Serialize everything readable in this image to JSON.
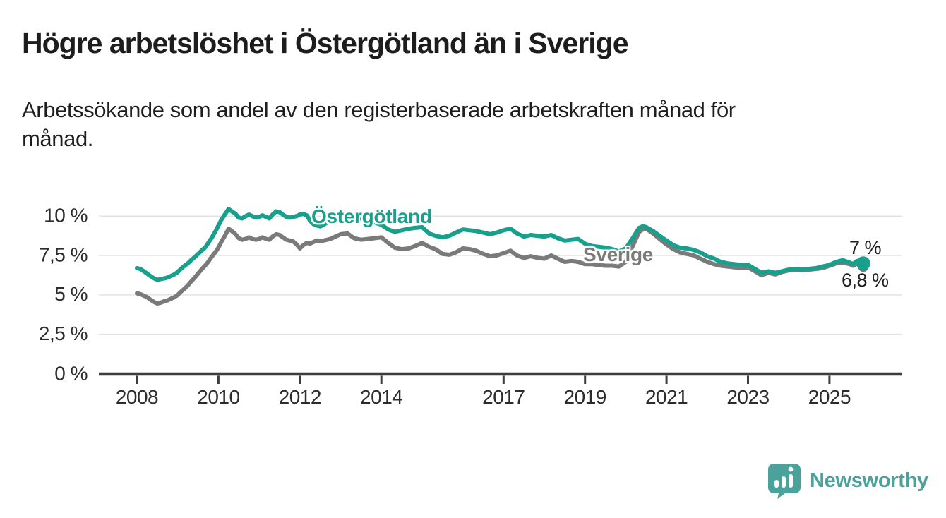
{
  "title": "Högre arbetslöshet i Östergötland än i Sverige",
  "subtitle": "Arbetssökande som andel av den registerbaserade arbetskraften månad för\nmånad.",
  "branding": {
    "logo_text": "Newsworthy",
    "logo_color": "#4ba29b"
  },
  "colors": {
    "ostergotland_line": "#18a08d",
    "sverige_line": "#7a7a7a",
    "gridline": "#e2e2e2",
    "axis": "#3d3d3d",
    "text": "#1d1d1d",
    "axis_text": "#2c2c2c"
  },
  "chart_data": {
    "type": "line",
    "title": "Högre arbetslöshet i Östergötland än i Sverige",
    "subtitle": "Arbetssökande som andel av den registerbaserade arbetskraften månad för månad.",
    "xlabel": "",
    "ylabel": "",
    "grid": "horizontal",
    "legend_position": "inline-labels",
    "x_axis": {
      "range": [
        2008,
        2025.9
      ],
      "ticks": [
        2008,
        2010,
        2012,
        2014,
        2017,
        2019,
        2021,
        2023,
        2025
      ],
      "tick_labels": [
        "2008",
        "2010",
        "2012",
        "2014",
        "2017",
        "2019",
        "2021",
        "2023",
        "2025"
      ]
    },
    "y_axis": {
      "range": [
        0,
        11
      ],
      "ticks": [
        0,
        2.5,
        5,
        7.5,
        10
      ],
      "tick_labels": [
        "0 %",
        "2,5 %",
        "5 %",
        "7,5 %",
        "10 %"
      ]
    },
    "series": [
      {
        "name": "Östergötland",
        "color": "#18a08d",
        "end_label": "7 %",
        "end_value": 7.0,
        "points": [
          [
            2008.0,
            6.7
          ],
          [
            2008.08,
            6.65
          ],
          [
            2008.17,
            6.5
          ],
          [
            2008.25,
            6.35
          ],
          [
            2008.33,
            6.2
          ],
          [
            2008.42,
            6.05
          ],
          [
            2008.5,
            5.95
          ],
          [
            2008.58,
            6.0
          ],
          [
            2008.67,
            6.05
          ],
          [
            2008.75,
            6.1
          ],
          [
            2008.83,
            6.2
          ],
          [
            2008.92,
            6.3
          ],
          [
            2009.0,
            6.45
          ],
          [
            2009.08,
            6.65
          ],
          [
            2009.17,
            6.85
          ],
          [
            2009.25,
            7.0
          ],
          [
            2009.33,
            7.2
          ],
          [
            2009.42,
            7.4
          ],
          [
            2009.5,
            7.6
          ],
          [
            2009.58,
            7.8
          ],
          [
            2009.67,
            8.0
          ],
          [
            2009.75,
            8.3
          ],
          [
            2009.83,
            8.6
          ],
          [
            2009.92,
            9.0
          ],
          [
            2010.0,
            9.4
          ],
          [
            2010.08,
            9.8
          ],
          [
            2010.17,
            10.15
          ],
          [
            2010.25,
            10.45
          ],
          [
            2010.33,
            10.3
          ],
          [
            2010.42,
            10.15
          ],
          [
            2010.5,
            9.9
          ],
          [
            2010.58,
            9.85
          ],
          [
            2010.67,
            10.0
          ],
          [
            2010.75,
            10.1
          ],
          [
            2010.83,
            10.0
          ],
          [
            2010.92,
            9.9
          ],
          [
            2011.0,
            9.95
          ],
          [
            2011.08,
            10.05
          ],
          [
            2011.17,
            9.95
          ],
          [
            2011.25,
            9.85
          ],
          [
            2011.33,
            10.1
          ],
          [
            2011.42,
            10.3
          ],
          [
            2011.5,
            10.25
          ],
          [
            2011.58,
            10.1
          ],
          [
            2011.67,
            9.95
          ],
          [
            2011.75,
            9.9
          ],
          [
            2011.83,
            9.95
          ],
          [
            2011.92,
            10.0
          ],
          [
            2012.0,
            10.1
          ],
          [
            2012.08,
            10.15
          ],
          [
            2012.17,
            10.05
          ],
          [
            2012.25,
            9.7
          ],
          [
            2012.33,
            9.5
          ],
          [
            2012.42,
            9.4
          ],
          [
            2012.5,
            9.35
          ],
          [
            2012.58,
            9.45
          ],
          [
            2012.67,
            9.6
          ],
          [
            2012.75,
            9.75
          ],
          [
            2012.83,
            9.9
          ],
          [
            2012.92,
            9.95
          ],
          [
            2013.0,
            10.0
          ],
          [
            2013.17,
            10.1
          ],
          [
            2013.33,
            10.0
          ],
          [
            2013.5,
            9.85
          ],
          [
            2013.67,
            9.7
          ],
          [
            2013.83,
            9.6
          ],
          [
            2014.0,
            9.45
          ],
          [
            2014.17,
            9.15
          ],
          [
            2014.33,
            9.0
          ],
          [
            2014.5,
            9.1
          ],
          [
            2014.67,
            9.2
          ],
          [
            2014.83,
            9.25
          ],
          [
            2015.0,
            9.3
          ],
          [
            2015.17,
            8.9
          ],
          [
            2015.33,
            8.75
          ],
          [
            2015.5,
            8.65
          ],
          [
            2015.67,
            8.75
          ],
          [
            2015.83,
            8.95
          ],
          [
            2016.0,
            9.15
          ],
          [
            2016.17,
            9.1
          ],
          [
            2016.33,
            9.05
          ],
          [
            2016.5,
            8.95
          ],
          [
            2016.67,
            8.85
          ],
          [
            2016.83,
            8.95
          ],
          [
            2017.0,
            9.1
          ],
          [
            2017.17,
            9.2
          ],
          [
            2017.33,
            8.9
          ],
          [
            2017.5,
            8.7
          ],
          [
            2017.67,
            8.8
          ],
          [
            2017.83,
            8.75
          ],
          [
            2018.0,
            8.7
          ],
          [
            2018.17,
            8.8
          ],
          [
            2018.33,
            8.6
          ],
          [
            2018.5,
            8.45
          ],
          [
            2018.67,
            8.5
          ],
          [
            2018.83,
            8.55
          ],
          [
            2019.0,
            8.25
          ],
          [
            2019.17,
            8.1
          ],
          [
            2019.33,
            8.05
          ],
          [
            2019.5,
            8.0
          ],
          [
            2019.67,
            7.9
          ],
          [
            2019.83,
            7.75
          ],
          [
            2020.0,
            7.95
          ],
          [
            2020.17,
            8.6
          ],
          [
            2020.33,
            9.25
          ],
          [
            2020.42,
            9.35
          ],
          [
            2020.5,
            9.3
          ],
          [
            2020.67,
            9.05
          ],
          [
            2020.83,
            8.75
          ],
          [
            2021.0,
            8.45
          ],
          [
            2021.17,
            8.15
          ],
          [
            2021.33,
            8.0
          ],
          [
            2021.5,
            7.95
          ],
          [
            2021.67,
            7.85
          ],
          [
            2021.83,
            7.7
          ],
          [
            2022.0,
            7.45
          ],
          [
            2022.17,
            7.3
          ],
          [
            2022.33,
            7.1
          ],
          [
            2022.5,
            7.0
          ],
          [
            2022.67,
            6.95
          ],
          [
            2022.83,
            6.9
          ],
          [
            2023.0,
            6.9
          ],
          [
            2023.17,
            6.65
          ],
          [
            2023.33,
            6.4
          ],
          [
            2023.5,
            6.5
          ],
          [
            2023.67,
            6.4
          ],
          [
            2023.83,
            6.5
          ],
          [
            2024.0,
            6.6
          ],
          [
            2024.17,
            6.65
          ],
          [
            2024.33,
            6.6
          ],
          [
            2024.5,
            6.65
          ],
          [
            2024.67,
            6.7
          ],
          [
            2024.83,
            6.8
          ],
          [
            2025.0,
            6.9
          ],
          [
            2025.17,
            7.1
          ],
          [
            2025.33,
            7.2
          ],
          [
            2025.5,
            7.05
          ],
          [
            2025.58,
            6.95
          ],
          [
            2025.67,
            7.15
          ],
          [
            2025.75,
            6.95
          ],
          [
            2025.83,
            7.0
          ]
        ]
      },
      {
        "name": "Sverige",
        "color": "#7a7a7a",
        "end_label": "6,8 %",
        "end_value": 6.8,
        "points": [
          [
            2008.0,
            5.1
          ],
          [
            2008.08,
            5.05
          ],
          [
            2008.17,
            4.95
          ],
          [
            2008.25,
            4.85
          ],
          [
            2008.33,
            4.7
          ],
          [
            2008.42,
            4.55
          ],
          [
            2008.5,
            4.45
          ],
          [
            2008.58,
            4.5
          ],
          [
            2008.67,
            4.6
          ],
          [
            2008.75,
            4.65
          ],
          [
            2008.83,
            4.75
          ],
          [
            2008.92,
            4.85
          ],
          [
            2009.0,
            5.0
          ],
          [
            2009.08,
            5.2
          ],
          [
            2009.17,
            5.4
          ],
          [
            2009.25,
            5.6
          ],
          [
            2009.33,
            5.85
          ],
          [
            2009.42,
            6.1
          ],
          [
            2009.5,
            6.35
          ],
          [
            2009.58,
            6.6
          ],
          [
            2009.67,
            6.85
          ],
          [
            2009.75,
            7.1
          ],
          [
            2009.83,
            7.4
          ],
          [
            2009.92,
            7.7
          ],
          [
            2010.0,
            8.0
          ],
          [
            2010.08,
            8.4
          ],
          [
            2010.17,
            8.8
          ],
          [
            2010.25,
            9.2
          ],
          [
            2010.33,
            9.05
          ],
          [
            2010.42,
            8.85
          ],
          [
            2010.5,
            8.6
          ],
          [
            2010.58,
            8.5
          ],
          [
            2010.67,
            8.55
          ],
          [
            2010.75,
            8.65
          ],
          [
            2010.83,
            8.55
          ],
          [
            2010.92,
            8.5
          ],
          [
            2011.0,
            8.55
          ],
          [
            2011.08,
            8.65
          ],
          [
            2011.17,
            8.55
          ],
          [
            2011.25,
            8.5
          ],
          [
            2011.33,
            8.7
          ],
          [
            2011.42,
            8.85
          ],
          [
            2011.5,
            8.8
          ],
          [
            2011.58,
            8.65
          ],
          [
            2011.67,
            8.5
          ],
          [
            2011.75,
            8.45
          ],
          [
            2011.83,
            8.4
          ],
          [
            2011.92,
            8.2
          ],
          [
            2012.0,
            7.95
          ],
          [
            2012.08,
            8.15
          ],
          [
            2012.17,
            8.3
          ],
          [
            2012.25,
            8.25
          ],
          [
            2012.33,
            8.35
          ],
          [
            2012.42,
            8.45
          ],
          [
            2012.5,
            8.4
          ],
          [
            2012.58,
            8.45
          ],
          [
            2012.67,
            8.5
          ],
          [
            2012.75,
            8.55
          ],
          [
            2012.83,
            8.65
          ],
          [
            2012.92,
            8.75
          ],
          [
            2013.0,
            8.85
          ],
          [
            2013.17,
            8.9
          ],
          [
            2013.33,
            8.6
          ],
          [
            2013.5,
            8.5
          ],
          [
            2013.67,
            8.55
          ],
          [
            2013.83,
            8.6
          ],
          [
            2014.0,
            8.65
          ],
          [
            2014.17,
            8.3
          ],
          [
            2014.33,
            8.0
          ],
          [
            2014.5,
            7.9
          ],
          [
            2014.67,
            7.95
          ],
          [
            2014.83,
            8.1
          ],
          [
            2015.0,
            8.3
          ],
          [
            2015.17,
            8.05
          ],
          [
            2015.33,
            7.9
          ],
          [
            2015.5,
            7.6
          ],
          [
            2015.67,
            7.55
          ],
          [
            2015.83,
            7.7
          ],
          [
            2016.0,
            7.95
          ],
          [
            2016.17,
            7.9
          ],
          [
            2016.33,
            7.8
          ],
          [
            2016.5,
            7.6
          ],
          [
            2016.67,
            7.45
          ],
          [
            2016.83,
            7.5
          ],
          [
            2017.0,
            7.65
          ],
          [
            2017.17,
            7.8
          ],
          [
            2017.33,
            7.5
          ],
          [
            2017.5,
            7.35
          ],
          [
            2017.67,
            7.45
          ],
          [
            2017.83,
            7.35
          ],
          [
            2018.0,
            7.3
          ],
          [
            2018.17,
            7.5
          ],
          [
            2018.33,
            7.3
          ],
          [
            2018.5,
            7.1
          ],
          [
            2018.67,
            7.15
          ],
          [
            2018.83,
            7.1
          ],
          [
            2019.0,
            6.95
          ],
          [
            2019.17,
            6.95
          ],
          [
            2019.33,
            6.9
          ],
          [
            2019.5,
            6.85
          ],
          [
            2019.67,
            6.85
          ],
          [
            2019.83,
            6.8
          ],
          [
            2020.0,
            7.1
          ],
          [
            2020.17,
            8.1
          ],
          [
            2020.33,
            9.0
          ],
          [
            2020.42,
            9.15
          ],
          [
            2020.5,
            9.2
          ],
          [
            2020.67,
            8.9
          ],
          [
            2020.83,
            8.55
          ],
          [
            2021.0,
            8.2
          ],
          [
            2021.17,
            7.9
          ],
          [
            2021.33,
            7.7
          ],
          [
            2021.5,
            7.6
          ],
          [
            2021.67,
            7.5
          ],
          [
            2021.83,
            7.3
          ],
          [
            2022.0,
            7.1
          ],
          [
            2022.17,
            6.95
          ],
          [
            2022.33,
            6.85
          ],
          [
            2022.5,
            6.8
          ],
          [
            2022.67,
            6.75
          ],
          [
            2022.83,
            6.7
          ],
          [
            2023.0,
            6.75
          ],
          [
            2023.17,
            6.5
          ],
          [
            2023.33,
            6.25
          ],
          [
            2023.5,
            6.4
          ],
          [
            2023.67,
            6.3
          ],
          [
            2023.83,
            6.45
          ],
          [
            2024.0,
            6.55
          ],
          [
            2024.17,
            6.6
          ],
          [
            2024.33,
            6.55
          ],
          [
            2024.5,
            6.6
          ],
          [
            2024.67,
            6.65
          ],
          [
            2024.83,
            6.7
          ],
          [
            2025.0,
            6.85
          ],
          [
            2025.17,
            7.0
          ],
          [
            2025.33,
            7.05
          ],
          [
            2025.5,
            6.95
          ],
          [
            2025.58,
            6.85
          ],
          [
            2025.67,
            7.0
          ],
          [
            2025.75,
            6.85
          ],
          [
            2025.83,
            6.8
          ]
        ]
      }
    ]
  }
}
